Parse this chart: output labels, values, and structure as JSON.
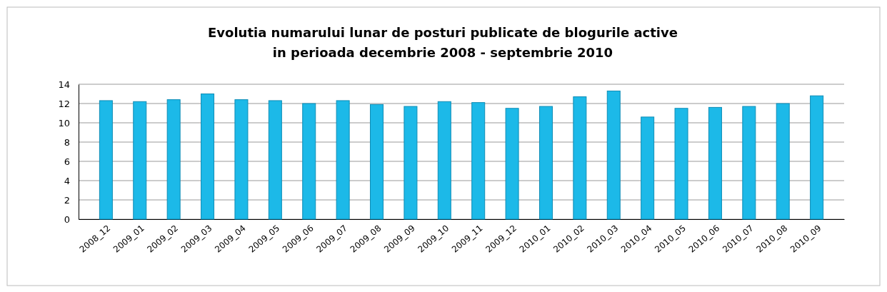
{
  "chart_data": {
    "type": "bar",
    "title": "Evolutia numarului lunar de posturi publicate de blogurile active\nin perioada decembrie 2008 - septembrie 2010",
    "categories": [
      "2008_12",
      "2009_01",
      "2009_02",
      "2009_03",
      "2009_04",
      "2009_05",
      "2009_06",
      "2009_07",
      "2009_08",
      "2009_09",
      "2009_10",
      "2009_11",
      "2009_12",
      "2010_01",
      "2010_02",
      "2010_03",
      "2010_04",
      "2010_05",
      "2010_06",
      "2010_07",
      "2010_08",
      "2010_09"
    ],
    "values": [
      12.3,
      12.2,
      12.4,
      13.0,
      12.4,
      12.3,
      12.0,
      12.3,
      11.9,
      11.7,
      12.2,
      12.1,
      11.5,
      11.7,
      12.7,
      13.3,
      10.6,
      11.5,
      11.6,
      11.7,
      12.0,
      12.8
    ],
    "color": "#1cb9e8",
    "ylim": [
      0,
      14
    ],
    "yticks": [
      0,
      2,
      4,
      6,
      8,
      10,
      12,
      14
    ],
    "grid": "y"
  }
}
